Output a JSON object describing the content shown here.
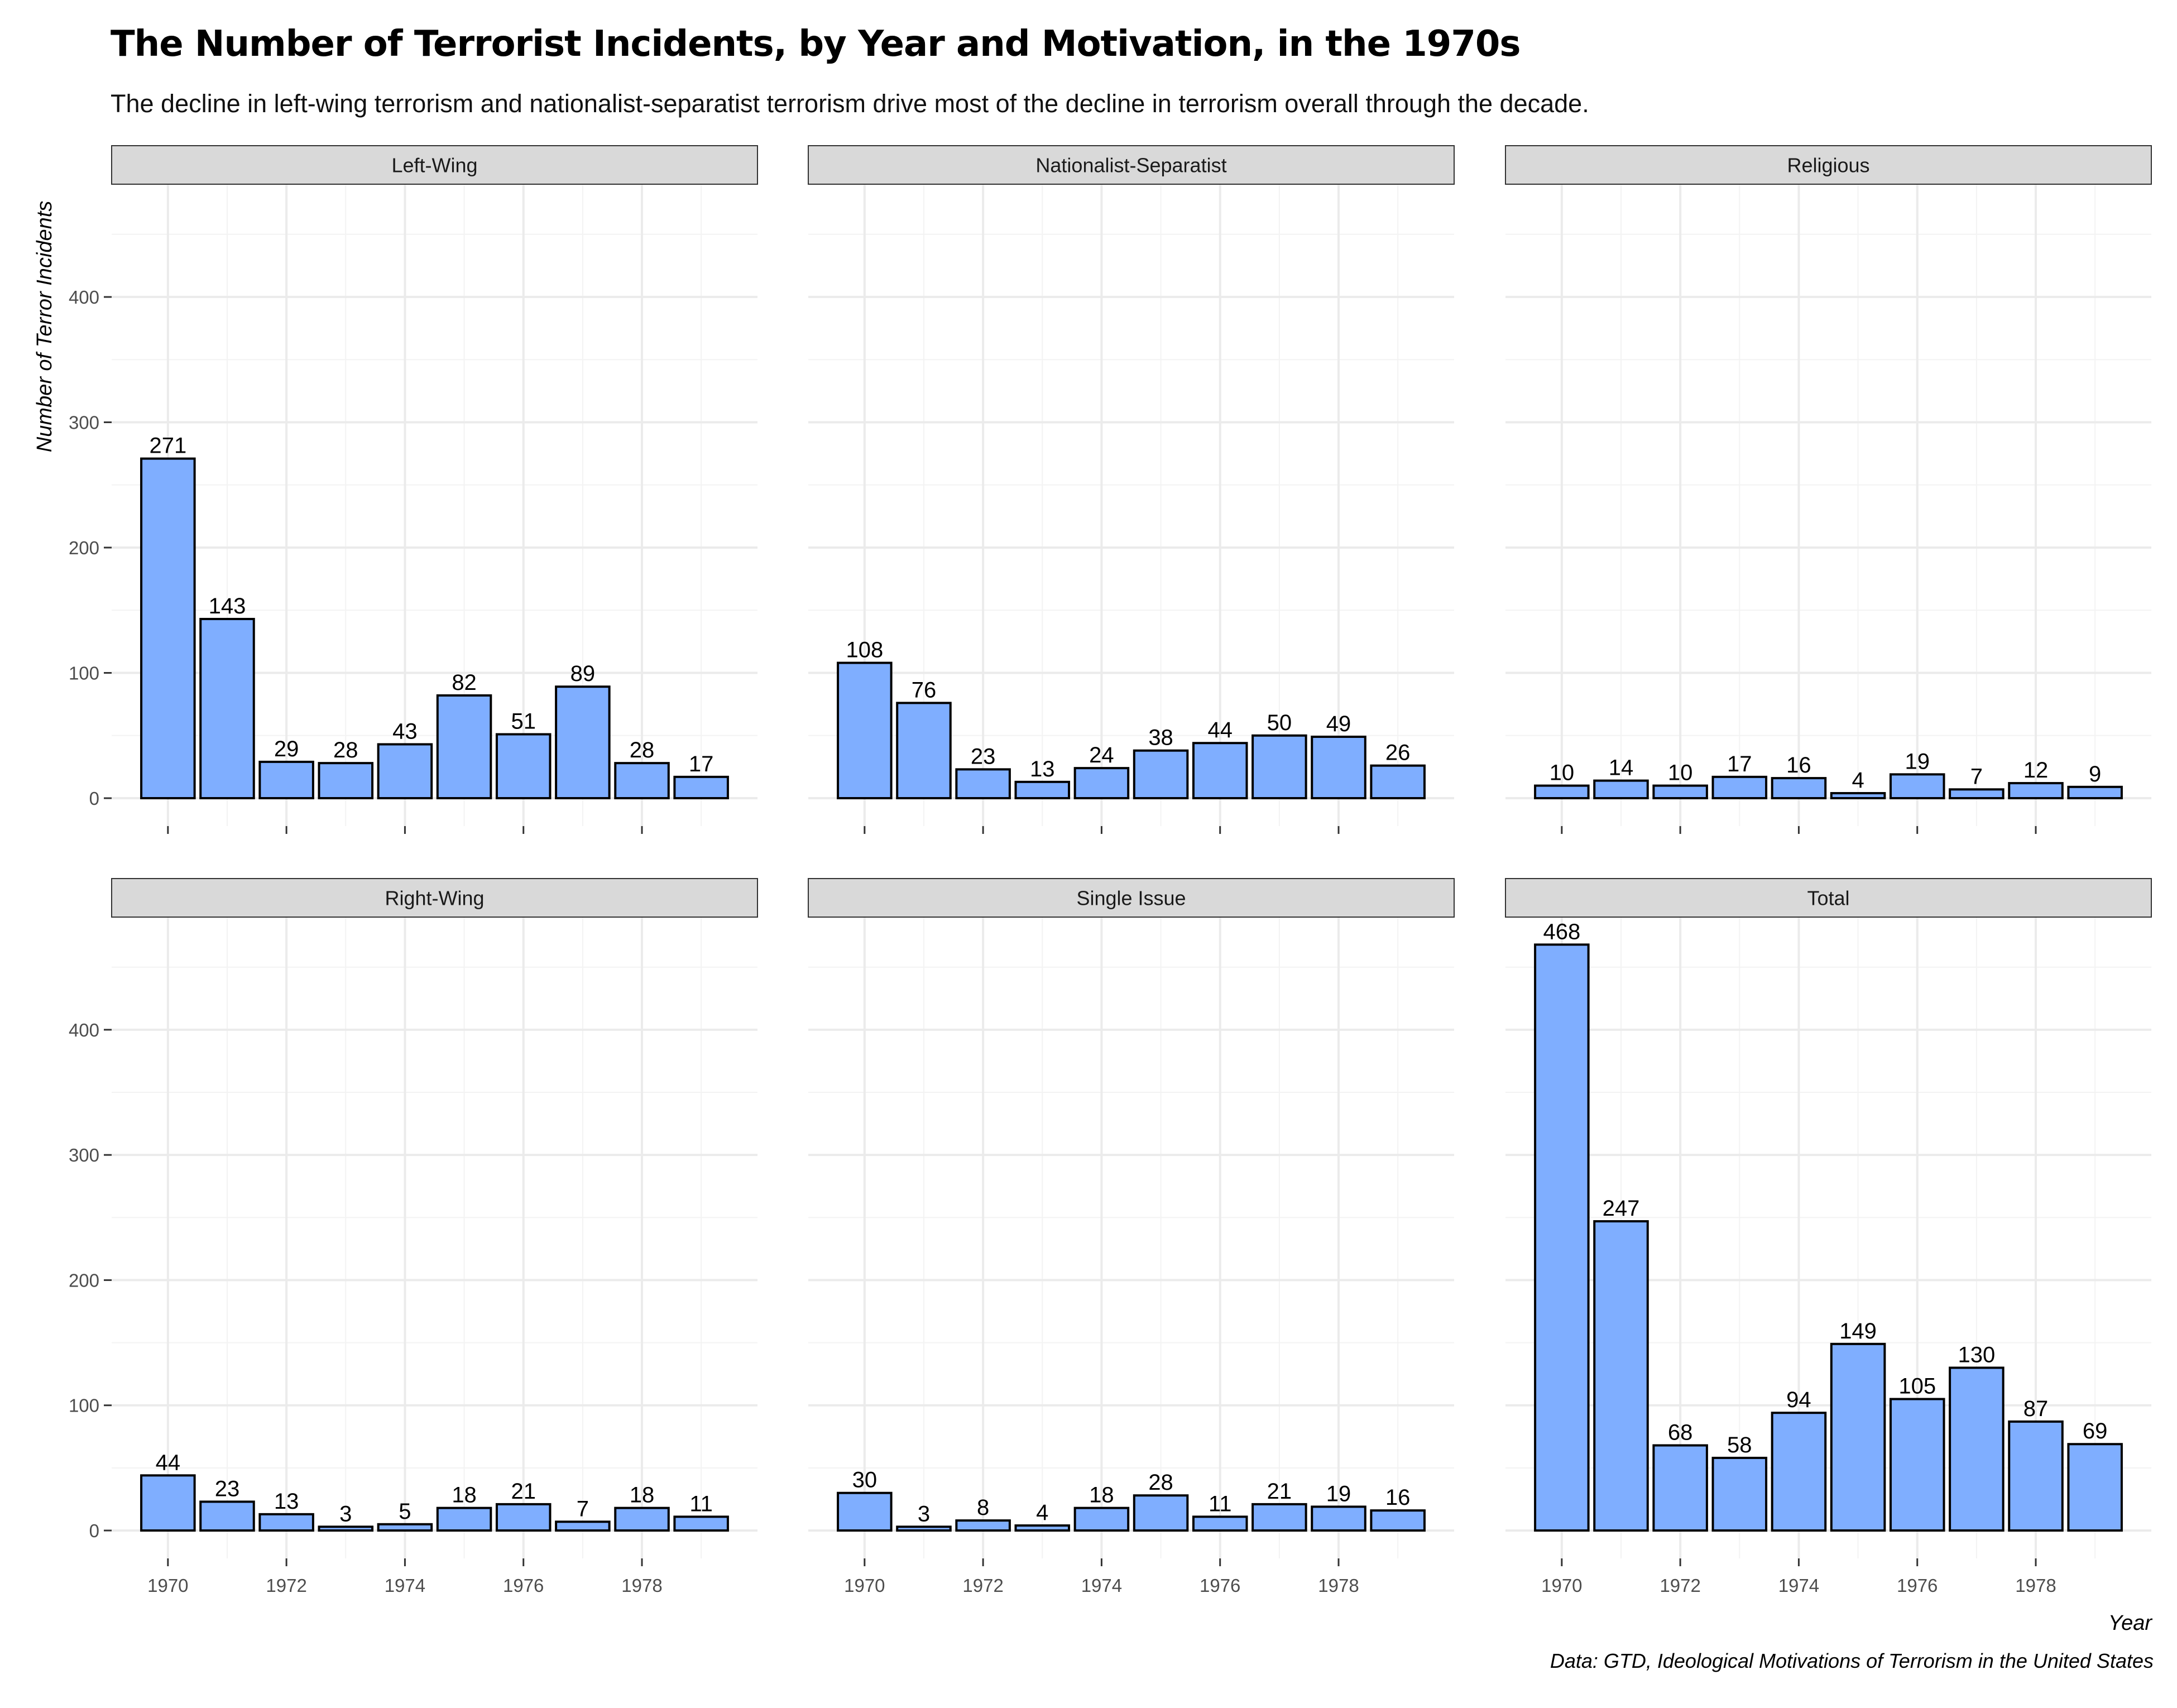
{
  "title": "The Number of Terrorist Incidents, by Year and Motivation, in the 1970s",
  "subtitle": "The decline in left-wing terrorism and nationalist-separatist terrorism drive most of the decline in terrorism overall through the decade.",
  "caption": "Data: GTD, Ideological Motivations of Terrorism in the United States",
  "colors": {
    "bar_fill": "#7faeff",
    "bar_stroke": "#000000",
    "strip_fill": "#d9d9d9",
    "grid": "#ebebeb"
  },
  "chart_data": {
    "type": "bar",
    "layout": "facets 2 rows x 3 columns, shared axes",
    "xlabel": "Year",
    "ylabel": "Number of Terror Incidents",
    "x": [
      1970,
      1971,
      1972,
      1973,
      1974,
      1975,
      1976,
      1977,
      1978,
      1979
    ],
    "x_ticks": [
      1970,
      1972,
      1974,
      1976,
      1978
    ],
    "y_ticks": [
      0,
      100,
      200,
      300,
      400
    ],
    "ylim": [
      0,
      490
    ],
    "grid": true,
    "data_labels": true,
    "panels": [
      {
        "name": "Left-Wing",
        "values": [
          271,
          143,
          29,
          28,
          43,
          82,
          51,
          89,
          28,
          17
        ]
      },
      {
        "name": "Nationalist-Separatist",
        "values": [
          108,
          76,
          23,
          13,
          24,
          38,
          44,
          50,
          49,
          26
        ]
      },
      {
        "name": "Religious",
        "values": [
          10,
          14,
          10,
          17,
          16,
          4,
          19,
          7,
          12,
          9
        ]
      },
      {
        "name": "Right-Wing",
        "values": [
          44,
          23,
          13,
          3,
          5,
          18,
          21,
          7,
          18,
          11
        ]
      },
      {
        "name": "Single Issue",
        "values": [
          30,
          3,
          8,
          4,
          18,
          28,
          11,
          21,
          19,
          16
        ]
      },
      {
        "name": "Total",
        "values": [
          468,
          247,
          68,
          58,
          94,
          149,
          105,
          130,
          87,
          69
        ]
      }
    ]
  }
}
